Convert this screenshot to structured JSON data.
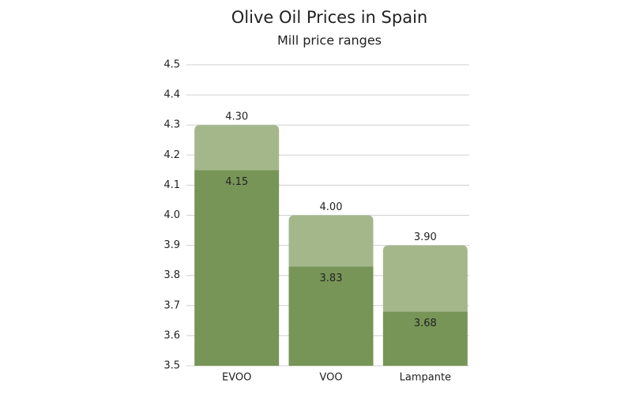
{
  "chart_data": {
    "type": "range",
    "title": "Olive Oil Prices in Spain",
    "subtitle": "Mill price ranges",
    "categories": [
      "EVOO",
      "VOO",
      "Lampante"
    ],
    "series": [
      {
        "color": "#779557",
        "values": [
          4.15,
          3.83,
          3.68
        ],
        "value_labels": [
          "4.15",
          "3.83",
          "3.68"
        ]
      },
      {
        "color": "#a3b78b",
        "values": [
          4.3,
          4.0,
          3.9
        ],
        "value_labels": [
          "4.30",
          "4.00",
          "3.90"
        ]
      }
    ],
    "ylim": [
      3.5,
      4.5
    ],
    "yticks": [
      3.5,
      3.6,
      3.7,
      3.8,
      3.9,
      {
        "value": 4,
        "label": "4.0"
      },
      4.1,
      4.2,
      4.3,
      4.4,
      4.5
    ],
    "grid": true
  }
}
